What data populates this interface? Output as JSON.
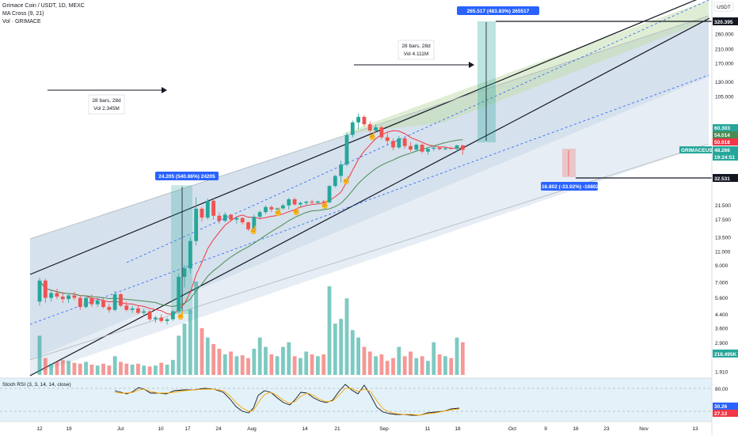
{
  "header": {
    "title": "Grimace Coin / USDT, 1D, MEXC",
    "indicator1": "MA Cross (9, 21)",
    "indicator2": "Vol · GRIMACE"
  },
  "currency": "USDT",
  "stoch_label": "Stoch RSI (3, 3, 14, 14, close)",
  "price_axis_ticks": [
    "260.000",
    "210.000",
    "170.000",
    "130.000",
    "105.000",
    "21.500",
    "17.500",
    "13.500",
    "11.000",
    "9.000",
    "7.000",
    "5.600",
    "4.400",
    "3.600",
    "2.900",
    "1.910"
  ],
  "stoch_axis_ticks": [
    "80.00"
  ],
  "date_axis_ticks": [
    "12",
    "19",
    "Jul",
    "10",
    "17",
    "24",
    "Aug",
    "14",
    "21",
    "Sep",
    "11",
    "18",
    "Oct",
    "9",
    "16",
    "23",
    "Nov",
    "13"
  ],
  "price_tags": {
    "top": "320.395",
    "ma_a": "60.303",
    "ma_b": "54.014",
    "ma_c": "50.018",
    "symbol": "GRIMACEUSDT",
    "last": "48.266",
    "countdown": "19:24:51",
    "target_low": "32.531",
    "volume": "218.495K",
    "stoch_k": "30.26",
    "stoch_d": "27.13"
  },
  "measurements": {
    "up1": "24.205 (540.86%) 24205",
    "bars1": "28 bars, 28d",
    "vol1": "Vol 2.345M",
    "up2": "265.517 (483.83%) 265517",
    "bars2": "28 bars, 28d",
    "vol2": "Vol 4.111M",
    "down": "-16.802 (-33.92%) -16802"
  },
  "colors": {
    "up": "#26a69a",
    "down": "#ef5350",
    "ma_fast": "#f23645",
    "ma_slow": "#4c8a52",
    "channel": "#131722",
    "fill_blue": "#b2c9dc",
    "fill_green": "#c5dfb0",
    "accent": "#2962ff",
    "stoch_bg": "#e3f2f8"
  },
  "chart_data": {
    "type": "candlestick",
    "symbol": "GRIMACEUSDT",
    "exchange": "MEXC",
    "interval": "1D",
    "y_scale": "log",
    "ylim": [
      1.91,
      390
    ],
    "x_start_date": "2023-06-12",
    "last_price": 48.266,
    "ohlc": [
      [
        5.3,
        7.5,
        5.0,
        7.2
      ],
      [
        7.2,
        7.4,
        5.2,
        5.6
      ],
      [
        5.6,
        6.2,
        5.3,
        6.0
      ],
      [
        6.0,
        6.4,
        5.5,
        5.7
      ],
      [
        5.7,
        6.1,
        5.2,
        5.5
      ],
      [
        5.5,
        5.9,
        5.2,
        5.8
      ],
      [
        5.8,
        6.1,
        5.4,
        5.6
      ],
      [
        5.6,
        5.8,
        4.7,
        4.9
      ],
      [
        4.9,
        5.7,
        4.8,
        5.6
      ],
      [
        5.6,
        5.9,
        4.9,
        5.1
      ],
      [
        5.1,
        5.6,
        4.9,
        5.4
      ],
      [
        5.4,
        5.6,
        4.8,
        4.9
      ],
      [
        4.9,
        5.1,
        4.5,
        4.7
      ],
      [
        4.7,
        6.2,
        4.6,
        5.9
      ],
      [
        5.9,
        6.0,
        4.9,
        5.0
      ],
      [
        5.0,
        5.3,
        4.6,
        4.7
      ],
      [
        4.7,
        5.0,
        4.5,
        4.8
      ],
      [
        4.8,
        5.0,
        4.4,
        4.5
      ],
      [
        4.5,
        4.8,
        4.3,
        4.6
      ],
      [
        4.6,
        4.7,
        4.0,
        4.1
      ],
      [
        4.1,
        4.3,
        3.9,
        4.2
      ],
      [
        4.2,
        4.4,
        3.9,
        4.0
      ],
      [
        4.0,
        4.2,
        3.8,
        4.1
      ],
      [
        4.1,
        4.7,
        4.0,
        4.6
      ],
      [
        4.6,
        8.0,
        4.5,
        7.6
      ],
      [
        7.6,
        9.0,
        6.5,
        8.6
      ],
      [
        8.6,
        13.5,
        8.0,
        12.8
      ],
      [
        12.8,
        24.2,
        12.0,
        20.5
      ],
      [
        20.5,
        21.0,
        17.0,
        18.0
      ],
      [
        18.0,
        23.8,
        17.5,
        23.0
      ],
      [
        23.0,
        24.0,
        17.5,
        18.5
      ],
      [
        18.5,
        19.5,
        16.5,
        17.2
      ],
      [
        17.2,
        19.5,
        16.8,
        18.8
      ],
      [
        18.8,
        19.0,
        17.0,
        17.5
      ],
      [
        17.5,
        18.3,
        16.5,
        17.9
      ],
      [
        17.9,
        18.2,
        16.3,
        16.8
      ],
      [
        16.8,
        17.0,
        14.8,
        15.2
      ],
      [
        15.2,
        18.8,
        15.0,
        18.2
      ],
      [
        18.2,
        20.0,
        17.8,
        19.5
      ],
      [
        19.5,
        21.5,
        19.0,
        21.0
      ],
      [
        21.0,
        21.5,
        19.5,
        20.3
      ],
      [
        20.3,
        20.8,
        19.5,
        20.6
      ],
      [
        20.6,
        22.0,
        20.2,
        21.5
      ],
      [
        21.5,
        24.0,
        20.2,
        23.5
      ],
      [
        23.5,
        24.0,
        21.5,
        21.8
      ],
      [
        21.8,
        22.8,
        21.0,
        22.3
      ],
      [
        22.3,
        23.0,
        21.5,
        22.7
      ],
      [
        22.7,
        23.4,
        21.8,
        22.4
      ],
      [
        22.4,
        23.0,
        21.9,
        22.8
      ],
      [
        22.8,
        23.2,
        22.0,
        22.5
      ],
      [
        22.5,
        29.0,
        22.2,
        28.5
      ],
      [
        28.5,
        33.5,
        28.0,
        33.0
      ],
      [
        33.0,
        41.0,
        30.0,
        39.0
      ],
      [
        39.0,
        62.0,
        38.0,
        60.0
      ],
      [
        60.0,
        74.0,
        58.0,
        72.0
      ],
      [
        72.0,
        82.0,
        65.0,
        78.0
      ],
      [
        78.0,
        80.0,
        68.0,
        70.0
      ],
      [
        70.0,
        73.0,
        62.0,
        64.0
      ],
      [
        64.0,
        70.0,
        62.0,
        67.0
      ],
      [
        67.0,
        69.0,
        56.0,
        58.0
      ],
      [
        58.0,
        62.0,
        52.0,
        55.0
      ],
      [
        55.0,
        57.0,
        48.0,
        50.0
      ],
      [
        50.0,
        59.0,
        49.0,
        57.0
      ],
      [
        57.0,
        58.0,
        49.0,
        51.0
      ],
      [
        51.0,
        54.0,
        47.0,
        48.5
      ],
      [
        48.5,
        53.0,
        47.0,
        52.0
      ],
      [
        52.0,
        53.0,
        46.0,
        47.0
      ],
      [
        47.0,
        50.0,
        45.0,
        49.0
      ],
      [
        49.0,
        51.0,
        47.5,
        49.8
      ],
      [
        49.8,
        50.5,
        48.0,
        48.8
      ],
      [
        48.8,
        50.0,
        48.0,
        49.5
      ],
      [
        49.5,
        50.5,
        48.5,
        49.0
      ],
      [
        49.0,
        52.0,
        47.0,
        51.5
      ],
      [
        51.5,
        52.0,
        45.0,
        48.3
      ]
    ],
    "volume": [
      0.42,
      0.18,
      0.12,
      0.14,
      0.16,
      0.15,
      0.13,
      0.12,
      0.14,
      0.11,
      0.1,
      0.12,
      0.1,
      0.2,
      0.14,
      0.12,
      0.11,
      0.12,
      0.1,
      0.09,
      0.1,
      0.13,
      0.11,
      0.16,
      0.42,
      0.55,
      0.7,
      1.0,
      0.5,
      0.4,
      0.33,
      0.28,
      0.22,
      0.25,
      0.2,
      0.21,
      0.18,
      0.28,
      0.4,
      0.3,
      0.22,
      0.2,
      0.3,
      0.35,
      0.2,
      0.18,
      0.25,
      0.22,
      0.2,
      0.22,
      0.95,
      0.55,
      0.6,
      0.82,
      0.48,
      0.4,
      0.3,
      0.25,
      0.2,
      0.22,
      0.15,
      0.18,
      0.3,
      0.2,
      0.25,
      0.18,
      0.2,
      0.15,
      0.35,
      0.22,
      0.2,
      0.18,
      0.4,
      0.35
    ]
  }
}
